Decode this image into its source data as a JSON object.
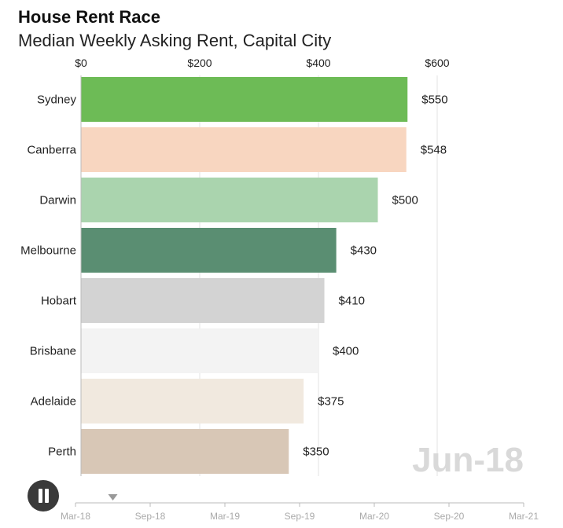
{
  "header": {
    "title": "House Rent Race",
    "subtitle": "Median Weekly Asking Rent, Capital City"
  },
  "current_period": "Jun-18",
  "controls": {
    "play_state": "playing",
    "icon": "pause-icon"
  },
  "timeline": {
    "labels": [
      "Mar-18",
      "Sep-18",
      "Mar-19",
      "Sep-19",
      "Mar-20",
      "Sep-20",
      "Mar-21"
    ],
    "current_position_label": "Jun-18"
  },
  "chart_data": {
    "type": "bar",
    "orientation": "horizontal",
    "title": "House Rent Race",
    "subtitle": "Median Weekly Asking Rent, Capital City",
    "categories": [
      "Sydney",
      "Canberra",
      "Darwin",
      "Melbourne",
      "Hobart",
      "Brisbane",
      "Adelaide",
      "Perth"
    ],
    "values": [
      550,
      548,
      500,
      430,
      410,
      400,
      375,
      350
    ],
    "value_labels": [
      "$550",
      "$548",
      "$500",
      "$430",
      "$410",
      "$400",
      "$375",
      "$350"
    ],
    "colors": [
      "#6dbb56",
      "#f8d6c0",
      "#aad4ae",
      "#5a8e72",
      "#d3d3d3",
      "#f3f3f3",
      "#f1e9df",
      "#d8c7b6"
    ],
    "xlim": [
      0,
      600
    ],
    "ticks": [
      0,
      200,
      400,
      600
    ],
    "tick_labels": [
      "$0",
      "$200",
      "$400",
      "$600"
    ],
    "x_axis_position": "top",
    "grid": true
  }
}
